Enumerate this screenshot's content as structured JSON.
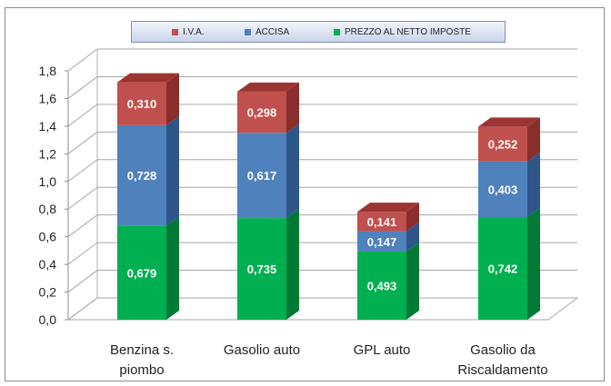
{
  "chart_data": {
    "type": "bar",
    "stacked": true,
    "style": "3d",
    "title": "",
    "xlabel": "",
    "ylabel": "",
    "ylim": [
      0,
      1.8
    ],
    "y_ticks": [
      "0,0",
      "0,2",
      "0,4",
      "0,6",
      "0,8",
      "1,0",
      "1,2",
      "1,4",
      "1,6",
      "1,8"
    ],
    "y_tick_values": [
      0,
      0.2,
      0.4,
      0.6,
      0.8,
      1.0,
      1.2,
      1.4,
      1.6,
      1.8
    ],
    "grid": true,
    "legend_position": "top",
    "categories": [
      [
        "Benzina s.",
        "piombo"
      ],
      [
        "Gasolio auto"
      ],
      [
        "GPL auto"
      ],
      [
        "Gasolio da",
        "Riscaldamento"
      ]
    ],
    "series": [
      {
        "name": "PREZZO AL NETTO IMPOSTE",
        "color": "#00b050",
        "side": "#007a35",
        "top": "#1fd06a",
        "values": [
          0.679,
          0.735,
          0.493,
          0.742
        ],
        "labels": [
          "0,679",
          "0,735",
          "0,493",
          "0,742"
        ]
      },
      {
        "name": "ACCISA",
        "color": "#4f81bd",
        "side": "#2f5689",
        "top": "#6d9ad6",
        "values": [
          0.728,
          0.617,
          0.147,
          0.403
        ],
        "labels": [
          "0,728",
          "0,617",
          "0,147",
          "0,403"
        ]
      },
      {
        "name": "I.V.A.",
        "color": "#c0504d",
        "side": "#8a2e2c",
        "top": "#9c3532",
        "values": [
          0.31,
          0.298,
          0.141,
          0.252
        ],
        "labels": [
          "0,310",
          "0,298",
          "0,141",
          "0,252"
        ]
      }
    ],
    "legend_order": [
      "I.V.A.",
      "ACCISA",
      "PREZZO AL NETTO IMPOSTE"
    ]
  }
}
